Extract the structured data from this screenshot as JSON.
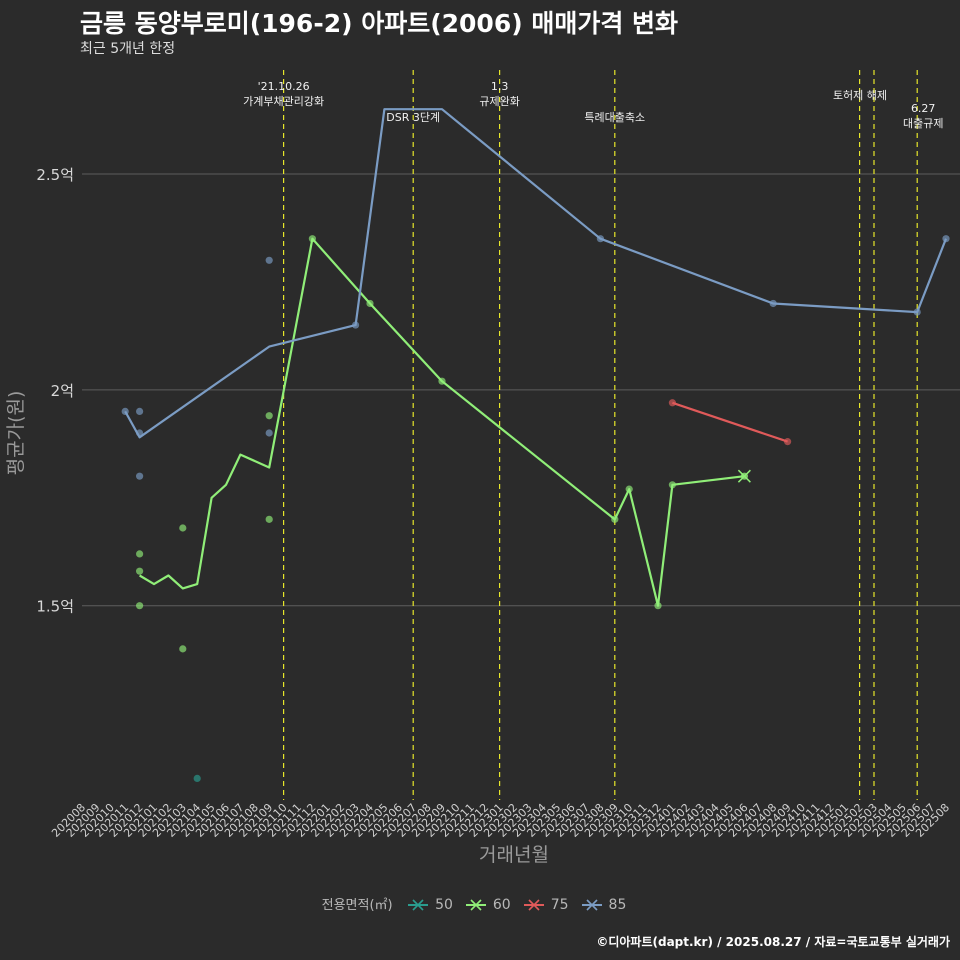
{
  "title": "금릉 동양부로미(196-2) 아파트(2006) 매매가격 변화",
  "subtitle": "최근 5개년 한정",
  "caption": "©디아파트(dapt.kr) / 2025.08.27 / 자료=국토교통부 실거래가",
  "chart_data": {
    "type": "line",
    "xlabel": "거래년월",
    "ylabel": "평균가(원)",
    "x_ticks": [
      "202008",
      "202009",
      "202010",
      "202011",
      "202012",
      "202101",
      "202102",
      "202103",
      "202104",
      "202105",
      "202106",
      "202107",
      "202108",
      "202109",
      "202110",
      "202111",
      "202112",
      "202201",
      "202202",
      "202203",
      "202204",
      "202205",
      "202206",
      "202207",
      "202208",
      "202209",
      "202210",
      "202211",
      "202212",
      "202301",
      "202302",
      "202303",
      "202304",
      "202305",
      "202306",
      "202307",
      "202308",
      "202309",
      "202310",
      "202311",
      "202312",
      "202401",
      "202402",
      "202403",
      "202404",
      "202405",
      "202406",
      "202407",
      "202408",
      "202409",
      "202410",
      "202411",
      "202412",
      "202501",
      "202502",
      "202503",
      "202504",
      "202505",
      "202506",
      "202507",
      "202508"
    ],
    "y_ticks": [
      {
        "value": 1.5,
        "label": "1.5억"
      },
      {
        "value": 2.0,
        "label": "2억"
      },
      {
        "value": 2.5,
        "label": "2.5억"
      }
    ],
    "ylim": [
      1.05,
      2.75
    ],
    "grid": "horizontal",
    "legend": {
      "title": "전용면적(㎡)",
      "position": "bottom"
    },
    "series": [
      {
        "name": "50",
        "color": "#2a9d8f",
        "line": [],
        "points": [
          [
            "202104",
            1.1
          ]
        ]
      },
      {
        "name": "60",
        "color": "#90ee78",
        "line": [
          [
            "202012",
            1.57
          ],
          [
            "202101",
            1.55
          ],
          [
            "202102",
            1.57
          ],
          [
            "202103",
            1.54
          ],
          [
            "202104",
            1.55
          ],
          [
            "202105",
            1.75
          ],
          [
            "202106",
            1.78
          ],
          [
            "202107",
            1.85
          ],
          [
            "202109",
            1.82
          ],
          [
            "202112",
            2.35
          ],
          [
            "202204",
            2.2
          ],
          [
            "202209",
            2.02
          ],
          [
            "202309",
            1.7
          ],
          [
            "202310",
            1.77
          ],
          [
            "202312",
            1.5
          ],
          [
            "202401",
            1.78
          ],
          [
            "202406",
            1.8
          ]
        ],
        "points": [
          [
            "202012",
            1.62
          ],
          [
            "202012",
            1.58
          ],
          [
            "202012",
            1.5
          ],
          [
            "202103",
            1.68
          ],
          [
            "202103",
            1.4
          ],
          [
            "202109",
            1.94
          ],
          [
            "202109",
            1.7
          ],
          [
            "202112",
            2.35
          ],
          [
            "202204",
            2.2
          ],
          [
            "202209",
            2.02
          ],
          [
            "202309",
            1.7
          ],
          [
            "202310",
            1.77
          ],
          [
            "202312",
            1.5
          ],
          [
            "202401",
            1.78
          ]
        ],
        "last_marker": [
          "202406",
          1.8
        ]
      },
      {
        "name": "75",
        "color": "#e05a5a",
        "line": [
          [
            "202401",
            1.97
          ],
          [
            "202409",
            1.88
          ]
        ],
        "points": [
          [
            "202401",
            1.97
          ],
          [
            "202409",
            1.88
          ]
        ]
      },
      {
        "name": "85",
        "color": "#7b9cc4",
        "line": [
          [
            "202011",
            1.95
          ],
          [
            "202012",
            1.89
          ],
          [
            "202109",
            2.1
          ],
          [
            "202203",
            2.15
          ],
          [
            "202205",
            2.65
          ],
          [
            "202209",
            2.65
          ],
          [
            "202308",
            2.35
          ],
          [
            "202408",
            2.2
          ],
          [
            "202506",
            2.18
          ],
          [
            "202508",
            2.35
          ]
        ],
        "points": [
          [
            "202011",
            1.95
          ],
          [
            "202012",
            1.95
          ],
          [
            "202012",
            1.9
          ],
          [
            "202012",
            1.8
          ],
          [
            "202109",
            2.3
          ],
          [
            "202109",
            1.9
          ],
          [
            "202203",
            2.15
          ],
          [
            "202308",
            2.35
          ],
          [
            "202408",
            2.2
          ],
          [
            "202506",
            2.18
          ],
          [
            "202508",
            2.35
          ]
        ]
      }
    ],
    "events": [
      {
        "x": "202110",
        "label": [
          "'21.10.26",
          "가계부채관리강화"
        ]
      },
      {
        "x": "202207",
        "label": [
          "DSR 3단계"
        ]
      },
      {
        "x": "202301",
        "label": [
          "1.3",
          "규제완화"
        ]
      },
      {
        "x": "202309",
        "label": [
          "특례대출축소"
        ]
      },
      {
        "x": "202502",
        "label": []
      },
      {
        "x": "202503",
        "label": [
          "토허제 해제"
        ]
      },
      {
        "x": "202506",
        "label": [
          "6.27",
          "대출규제"
        ]
      }
    ],
    "event_color": "#e6e62a"
  }
}
